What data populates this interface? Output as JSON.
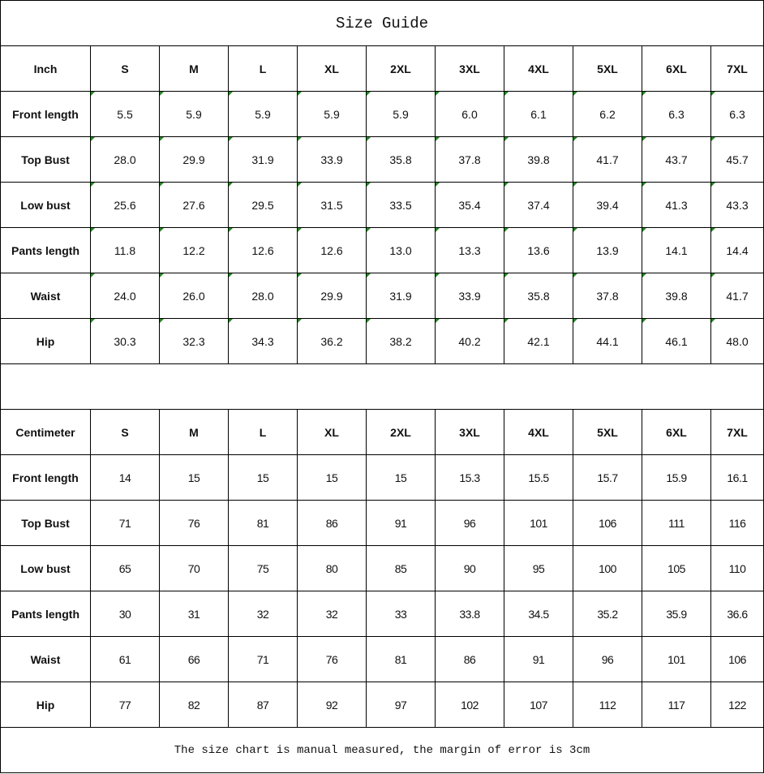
{
  "title": "Size Guide",
  "sizes": [
    "S",
    "M",
    "L",
    "XL",
    "2XL",
    "3XL",
    "4XL",
    "5XL",
    "6XL",
    "7XL"
  ],
  "inch": {
    "unit_label": "Inch",
    "rows": [
      {
        "label": "Front length",
        "values": [
          "5.5",
          "5.9",
          "5.9",
          "5.9",
          "5.9",
          "6.0",
          "6.1",
          "6.2",
          "6.3",
          "6.3"
        ]
      },
      {
        "label": "Top Bust",
        "values": [
          "28.0",
          "29.9",
          "31.9",
          "33.9",
          "35.8",
          "37.8",
          "39.8",
          "41.7",
          "43.7",
          "45.7"
        ]
      },
      {
        "label": "Low bust",
        "values": [
          "25.6",
          "27.6",
          "29.5",
          "31.5",
          "33.5",
          "35.4",
          "37.4",
          "39.4",
          "41.3",
          "43.3"
        ]
      },
      {
        "label": "Pants length",
        "values": [
          "11.8",
          "12.2",
          "12.6",
          "12.6",
          "13.0",
          "13.3",
          "13.6",
          "13.9",
          "14.1",
          "14.4"
        ]
      },
      {
        "label": "Waist",
        "values": [
          "24.0",
          "26.0",
          "28.0",
          "29.9",
          "31.9",
          "33.9",
          "35.8",
          "37.8",
          "39.8",
          "41.7"
        ]
      },
      {
        "label": "Hip",
        "values": [
          "30.3",
          "32.3",
          "34.3",
          "36.2",
          "38.2",
          "40.2",
          "42.1",
          "44.1",
          "46.1",
          "48.0"
        ]
      }
    ]
  },
  "centimeter": {
    "unit_label": "Centimeter",
    "rows": [
      {
        "label": "Front length",
        "values": [
          "14",
          "15",
          "15",
          "15",
          "15",
          "15.3",
          "15.5",
          "15.7",
          "15.9",
          "16.1"
        ]
      },
      {
        "label": "Top Bust",
        "values": [
          "71",
          "76",
          "81",
          "86",
          "91",
          "96",
          "101",
          "106",
          "111",
          "116"
        ]
      },
      {
        "label": "Low bust",
        "values": [
          "65",
          "70",
          "75",
          "80",
          "85",
          "90",
          "95",
          "100",
          "105",
          "110"
        ]
      },
      {
        "label": "Pants length",
        "values": [
          "30",
          "31",
          "32",
          "32",
          "33",
          "33.8",
          "34.5",
          "35.2",
          "35.9",
          "36.6"
        ]
      },
      {
        "label": "Waist",
        "values": [
          "61",
          "66",
          "71",
          "76",
          "81",
          "86",
          "91",
          "96",
          "101",
          "106"
        ]
      },
      {
        "label": "Hip",
        "values": [
          "77",
          "82",
          "87",
          "92",
          "97",
          "102",
          "107",
          "112",
          "117",
          "122"
        ]
      }
    ]
  },
  "footer": "The size chart is manual measured, the margin of error is 3cm",
  "colors": {
    "error_indicator": "#1a8a1a",
    "border": "#000000"
  }
}
